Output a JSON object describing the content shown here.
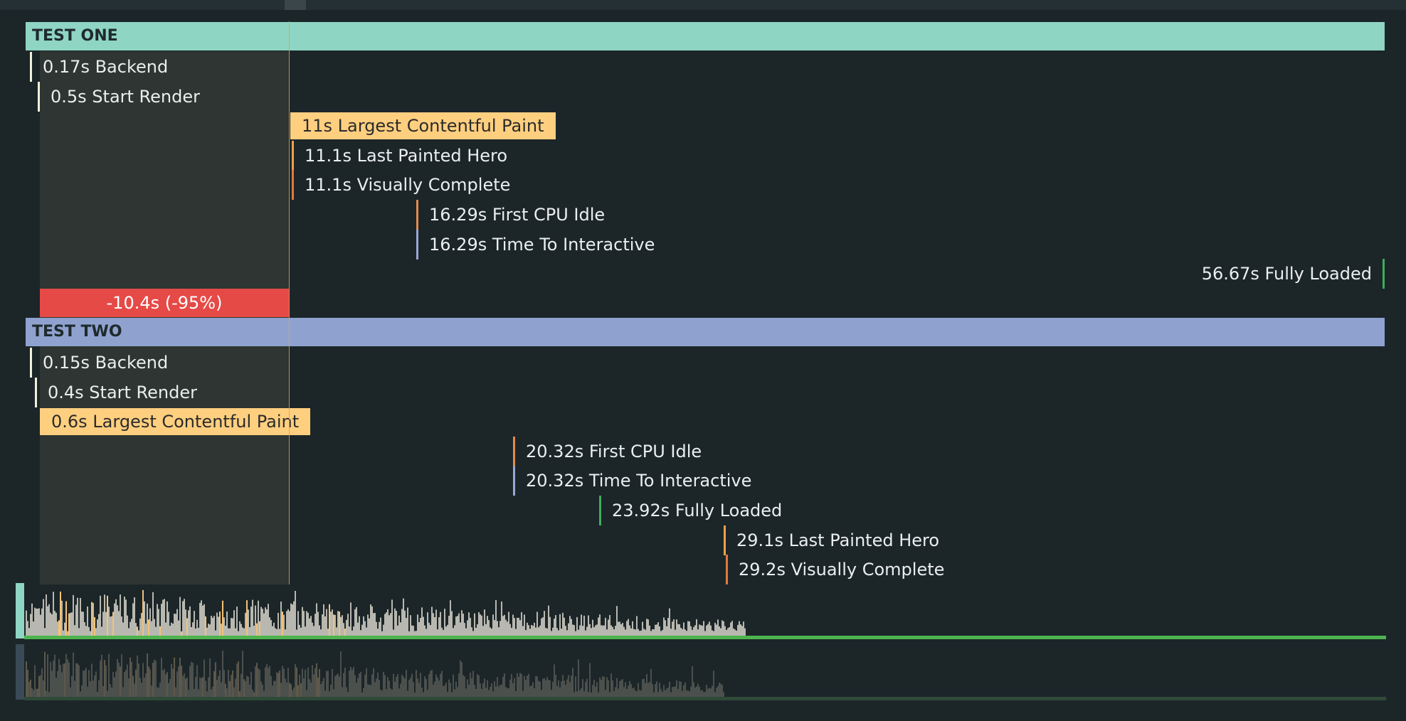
{
  "colors": {
    "test_one_band": "#8fd5c4",
    "test_two_band": "#8fa2cf",
    "backend": "#f0efd8",
    "start_render": "#f0efd8",
    "lcp_highlight": "#fecf7f",
    "hero": "#f0a048",
    "visual": "#e07a3a",
    "cpu_idle": "#e58a50",
    "tti": "#9aa8d4",
    "fully_loaded": "#3fae5a",
    "diff": "#e54a47",
    "baseline": "#4db34d"
  },
  "test_one": {
    "title": "TEST ONE",
    "markers": [
      {
        "id": "backend",
        "label": "0.17s Backend",
        "color": "#f0efd8"
      },
      {
        "id": "start-render",
        "label": "0.5s Start Render",
        "color": "#f0efd8"
      },
      {
        "id": "largest-contentful-paint",
        "label": "11s Largest Contentful Paint",
        "highlight": true
      },
      {
        "id": "last-painted-hero",
        "label": "11.1s Last Painted Hero",
        "color": "#f0a048"
      },
      {
        "id": "visually-complete",
        "label": "11.1s Visually Complete",
        "color": "#e07a3a"
      },
      {
        "id": "first-cpu-idle",
        "label": "16.29s First CPU Idle",
        "color": "#e58a50"
      },
      {
        "id": "time-to-interactive",
        "label": "16.29s Time To Interactive",
        "color": "#9aa8d4"
      },
      {
        "id": "fully-loaded",
        "label": "56.67s Fully Loaded",
        "color": "#3fae5a",
        "align": "right"
      }
    ],
    "difference": "-10.4s (-95%)"
  },
  "test_two": {
    "title": "TEST TWO",
    "markers": [
      {
        "id": "backend",
        "label": "0.15s Backend",
        "color": "#f0efd8"
      },
      {
        "id": "start-render",
        "label": "0.4s Start Render",
        "color": "#f0efd8"
      },
      {
        "id": "largest-contentful-paint",
        "label": "0.6s Largest Contentful Paint",
        "highlight": true
      },
      {
        "id": "first-cpu-idle",
        "label": "20.32s First CPU Idle",
        "color": "#e58a50"
      },
      {
        "id": "time-to-interactive",
        "label": "20.32s Time To Interactive",
        "color": "#9aa8d4"
      },
      {
        "id": "fully-loaded",
        "label": "23.92s Fully Loaded",
        "color": "#3fae5a"
      },
      {
        "id": "last-painted-hero",
        "label": "29.1s Last Painted Hero",
        "color": "#f0a048"
      },
      {
        "id": "visually-complete",
        "label": "29.2s Visually Complete",
        "color": "#e07a3a"
      }
    ]
  }
}
